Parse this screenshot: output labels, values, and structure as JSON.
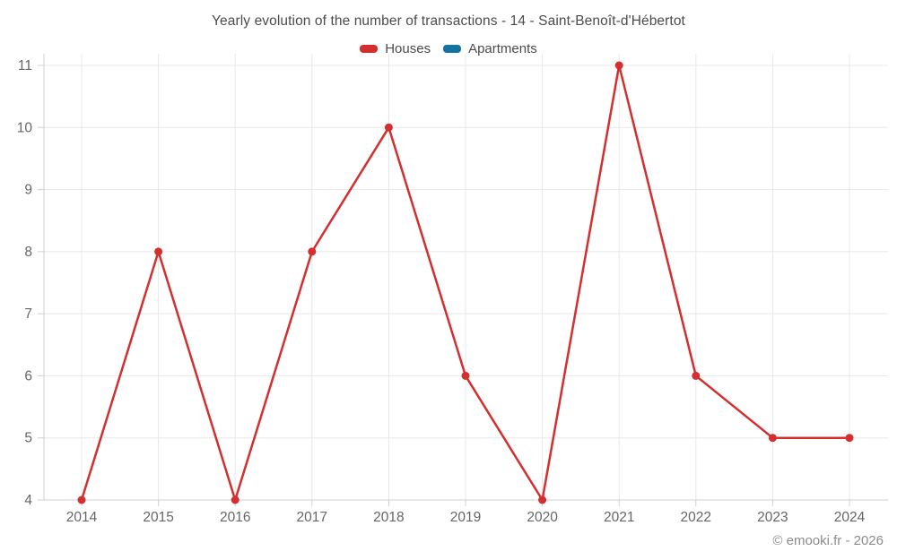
{
  "title": "Yearly evolution of the number of transactions - 14 - Saint-Benoît-d'Hébertot",
  "watermark": "© emooki.fr - 2026",
  "legend": [
    {
      "label": "Houses",
      "color": "#d32f2f"
    },
    {
      "label": "Apartments",
      "color": "#1272a0"
    }
  ],
  "colors": {
    "houses": "#d32f2f",
    "apartments": "#1272a0",
    "gridline": "#e8e8e8",
    "axis_line": "#d0d0d0",
    "tick_label": "#666666",
    "title_text": "#4c4c4c",
    "watermark_text": "#8c8c8c"
  },
  "chart_data": {
    "type": "line",
    "title": "Yearly evolution of the number of transactions - 14 - Saint-Benoît-d'Hébertot",
    "categories": [
      "2014",
      "2015",
      "2016",
      "2017",
      "2018",
      "2019",
      "2020",
      "2021",
      "2022",
      "2023",
      "2024"
    ],
    "series": [
      {
        "name": "Houses",
        "color": "#d32f2f",
        "values": [
          4,
          8,
          4,
          8,
          10,
          6,
          4,
          11,
          6,
          5,
          5
        ]
      },
      {
        "name": "Apartments",
        "color": "#1272a0",
        "values": []
      }
    ],
    "xlabel": "",
    "ylabel": "",
    "ylim": [
      4,
      11
    ],
    "yticks": [
      4,
      5,
      6,
      7,
      8,
      9,
      10,
      11
    ],
    "grid": true,
    "legend_position": "top",
    "marker": "circle"
  }
}
